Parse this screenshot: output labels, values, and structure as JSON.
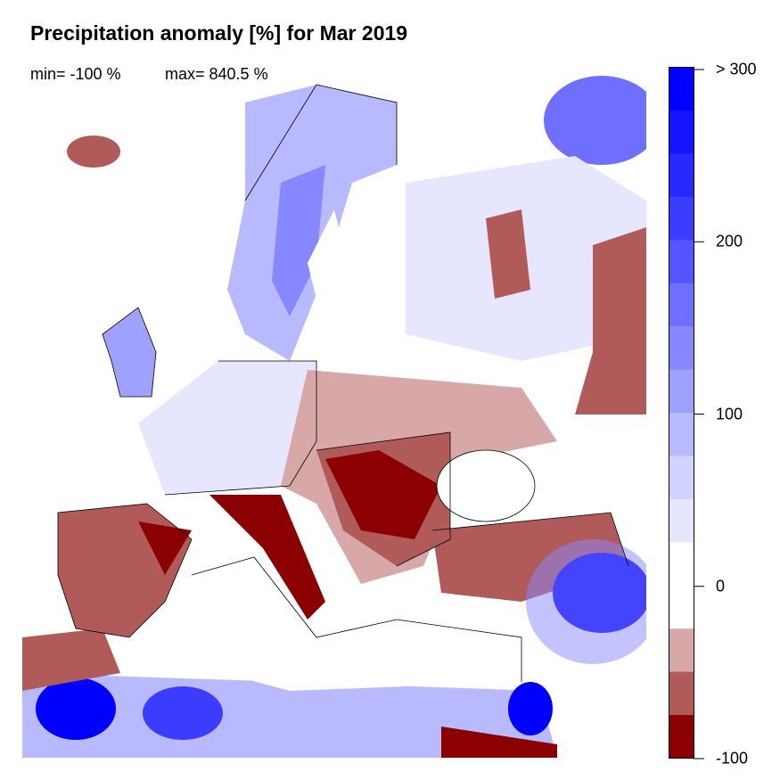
{
  "title": "Precipitation anomaly [%] for Mar 2019",
  "stats": {
    "min": "min= -100 %",
    "max": "max= 840.5 %"
  },
  "legend": {
    "ticks": [
      {
        "label": "> 300",
        "value": 300
      },
      {
        "label": "200",
        "value": 200
      },
      {
        "label": "100",
        "value": 100
      },
      {
        "label": "0",
        "value": 0
      },
      {
        "label": "-100",
        "value": -100
      }
    ],
    "range": [
      -100,
      300
    ],
    "bin_width": 25,
    "colors": [
      "#8b0000",
      "#b05a5a",
      "#d8a8a8",
      "#ffffff",
      "#ffffff",
      "#e6e6ff",
      "#d2d2ff",
      "#b9b9ff",
      "#a0a0ff",
      "#8787ff",
      "#6e6eff",
      "#5555ff",
      "#3c3cff",
      "#2828ff",
      "#1414ff",
      "#0000ff"
    ]
  }
}
